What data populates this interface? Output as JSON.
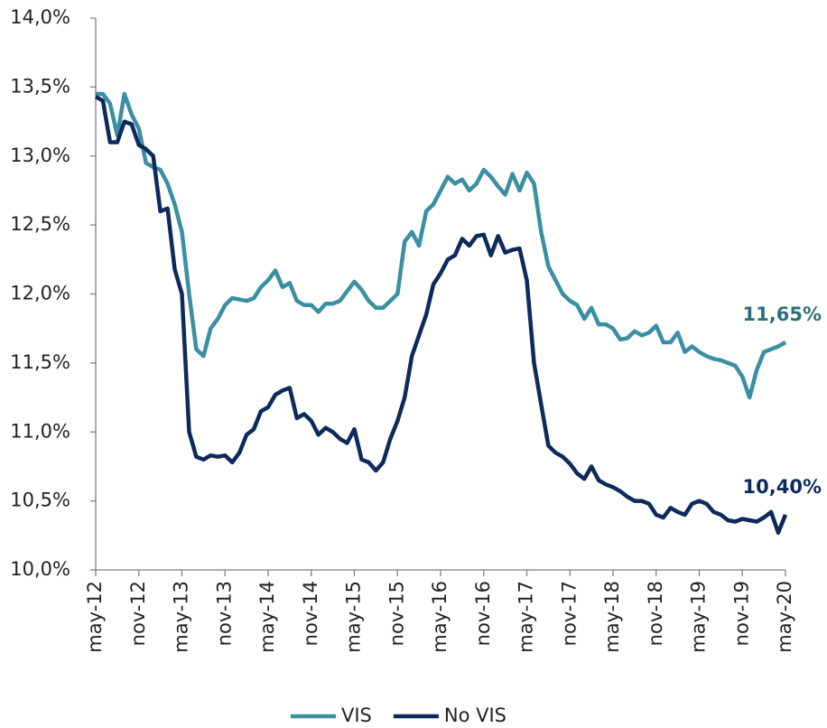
{
  "chart_data": {
    "type": "line",
    "categories": [
      "may-12",
      null,
      null,
      null,
      null,
      null,
      "nov-12",
      null,
      null,
      null,
      null,
      null,
      "may-13",
      null,
      null,
      null,
      null,
      null,
      "nov-13",
      null,
      null,
      null,
      null,
      null,
      "may-14",
      null,
      null,
      null,
      null,
      null,
      "nov-14",
      null,
      null,
      null,
      null,
      null,
      "may-15",
      null,
      null,
      null,
      null,
      null,
      "nov-15",
      null,
      null,
      null,
      null,
      null,
      "may-16",
      null,
      null,
      null,
      null,
      null,
      "nov-16",
      null,
      null,
      null,
      null,
      null,
      "may-17",
      null,
      null,
      null,
      null,
      null,
      "nov-17",
      null,
      null,
      null,
      null,
      null,
      "may-18",
      null,
      null,
      null,
      null,
      null,
      "nov-18",
      null,
      null,
      null,
      null,
      null,
      "may-19",
      null,
      null,
      null,
      null,
      null,
      "nov-19",
      null,
      null,
      null,
      null,
      null,
      "may-20"
    ],
    "series": [
      {
        "name": "VIS",
        "color": "#3a8fa2",
        "label_color": "#2d6f7d",
        "values": [
          13.45,
          13.45,
          13.38,
          13.15,
          13.45,
          13.3,
          13.2,
          12.95,
          12.92,
          12.9,
          12.8,
          12.65,
          12.45,
          12.0,
          11.6,
          11.55,
          11.75,
          11.82,
          11.92,
          11.97,
          11.96,
          11.95,
          11.97,
          12.05,
          12.1,
          12.17,
          12.05,
          12.08,
          11.95,
          11.92,
          11.92,
          11.87,
          11.93,
          11.93,
          11.95,
          12.02,
          12.09,
          12.03,
          11.95,
          11.9,
          11.9,
          11.95,
          12.0,
          12.38,
          12.45,
          12.35,
          12.6,
          12.65,
          12.75,
          12.85,
          12.8,
          12.83,
          12.75,
          12.8,
          12.9,
          12.85,
          12.78,
          12.72,
          12.87,
          12.75,
          12.88,
          12.8,
          12.45,
          12.2,
          12.1,
          12.0,
          11.95,
          11.92,
          11.82,
          11.9,
          11.78,
          11.78,
          11.75,
          11.67,
          11.68,
          11.73,
          11.7,
          11.72,
          11.77,
          11.65,
          11.65,
          11.72,
          11.58,
          11.62,
          11.58,
          11.55,
          11.53,
          11.52,
          11.5,
          11.48,
          11.4,
          11.25,
          11.45,
          11.58,
          11.6,
          11.62,
          11.65
        ],
        "value_labels": [
          null,
          null,
          null,
          null,
          null,
          null,
          null,
          null,
          null,
          null,
          null,
          null,
          null,
          null,
          null,
          null,
          null,
          null,
          null,
          null,
          null,
          null,
          null,
          null,
          null,
          null,
          null,
          null,
          null,
          null,
          null,
          null,
          null,
          null,
          null,
          null,
          null,
          null,
          null,
          null,
          null,
          null,
          null,
          null,
          null,
          null,
          null,
          null,
          null,
          null,
          null,
          null,
          null,
          null,
          null,
          null,
          null,
          null,
          null,
          null,
          null,
          null,
          null,
          null,
          null,
          null,
          null,
          null,
          null,
          null,
          null,
          null,
          null,
          null,
          null,
          null,
          null,
          null,
          null,
          null,
          null,
          null,
          null,
          null,
          null,
          null,
          null,
          null,
          null,
          null,
          null,
          null,
          null,
          null,
          null,
          null,
          "11,65%"
        ]
      },
      {
        "name": "No VIS",
        "color": "#0d2a5c",
        "label_color": "#0d2a5c",
        "values": [
          13.43,
          13.4,
          13.1,
          13.1,
          13.25,
          13.23,
          13.08,
          13.05,
          13.0,
          12.6,
          12.62,
          12.18,
          12.0,
          11.0,
          10.82,
          10.8,
          10.83,
          10.82,
          10.83,
          10.78,
          10.85,
          10.98,
          11.02,
          11.15,
          11.18,
          11.27,
          11.3,
          11.32,
          11.1,
          11.13,
          11.08,
          10.98,
          11.03,
          11.0,
          10.95,
          10.92,
          11.02,
          10.8,
          10.78,
          10.72,
          10.78,
          10.95,
          11.08,
          11.25,
          11.55,
          11.7,
          11.85,
          12.07,
          12.15,
          12.25,
          12.28,
          12.4,
          12.35,
          12.42,
          12.43,
          12.28,
          12.42,
          12.3,
          12.32,
          12.33,
          12.1,
          11.5,
          11.2,
          10.9,
          10.85,
          10.82,
          10.77,
          10.7,
          10.66,
          10.75,
          10.65,
          10.62,
          10.6,
          10.57,
          10.53,
          10.5,
          10.5,
          10.48,
          10.4,
          10.38,
          10.45,
          10.42,
          10.4,
          10.48,
          10.5,
          10.48,
          10.42,
          10.4,
          10.36,
          10.35,
          10.37,
          10.36,
          10.35,
          10.38,
          10.42,
          10.27,
          10.4
        ],
        "value_labels": [
          null,
          null,
          null,
          null,
          null,
          null,
          null,
          null,
          null,
          null,
          null,
          null,
          null,
          null,
          null,
          null,
          null,
          null,
          null,
          null,
          null,
          null,
          null,
          null,
          null,
          null,
          null,
          null,
          null,
          null,
          null,
          null,
          null,
          null,
          null,
          null,
          null,
          null,
          null,
          null,
          null,
          null,
          null,
          null,
          null,
          null,
          null,
          null,
          null,
          null,
          null,
          null,
          null,
          null,
          null,
          null,
          null,
          null,
          null,
          null,
          null,
          null,
          null,
          null,
          null,
          null,
          null,
          null,
          null,
          null,
          null,
          null,
          null,
          null,
          null,
          null,
          null,
          null,
          null,
          null,
          null,
          null,
          null,
          null,
          null,
          null,
          null,
          null,
          null,
          null,
          null,
          null,
          null,
          null,
          null,
          null,
          "10,40%"
        ]
      }
    ],
    "ylim": [
      10,
      14
    ],
    "yticks": [
      {
        "value": 10,
        "label": "10,0%"
      },
      {
        "value": 10.5,
        "label": "10,5%"
      },
      {
        "value": 11,
        "label": "11,0%"
      },
      {
        "value": 11.5,
        "label": "11,5%"
      },
      {
        "value": 12,
        "label": "12,0%"
      },
      {
        "value": 12.5,
        "label": "12,5%"
      },
      {
        "value": 13,
        "label": "13,0%"
      },
      {
        "value": 13.5,
        "label": "13,5%"
      },
      {
        "value": 14,
        "label": "14,0%"
      }
    ],
    "grid": false,
    "legend": "bottom"
  }
}
